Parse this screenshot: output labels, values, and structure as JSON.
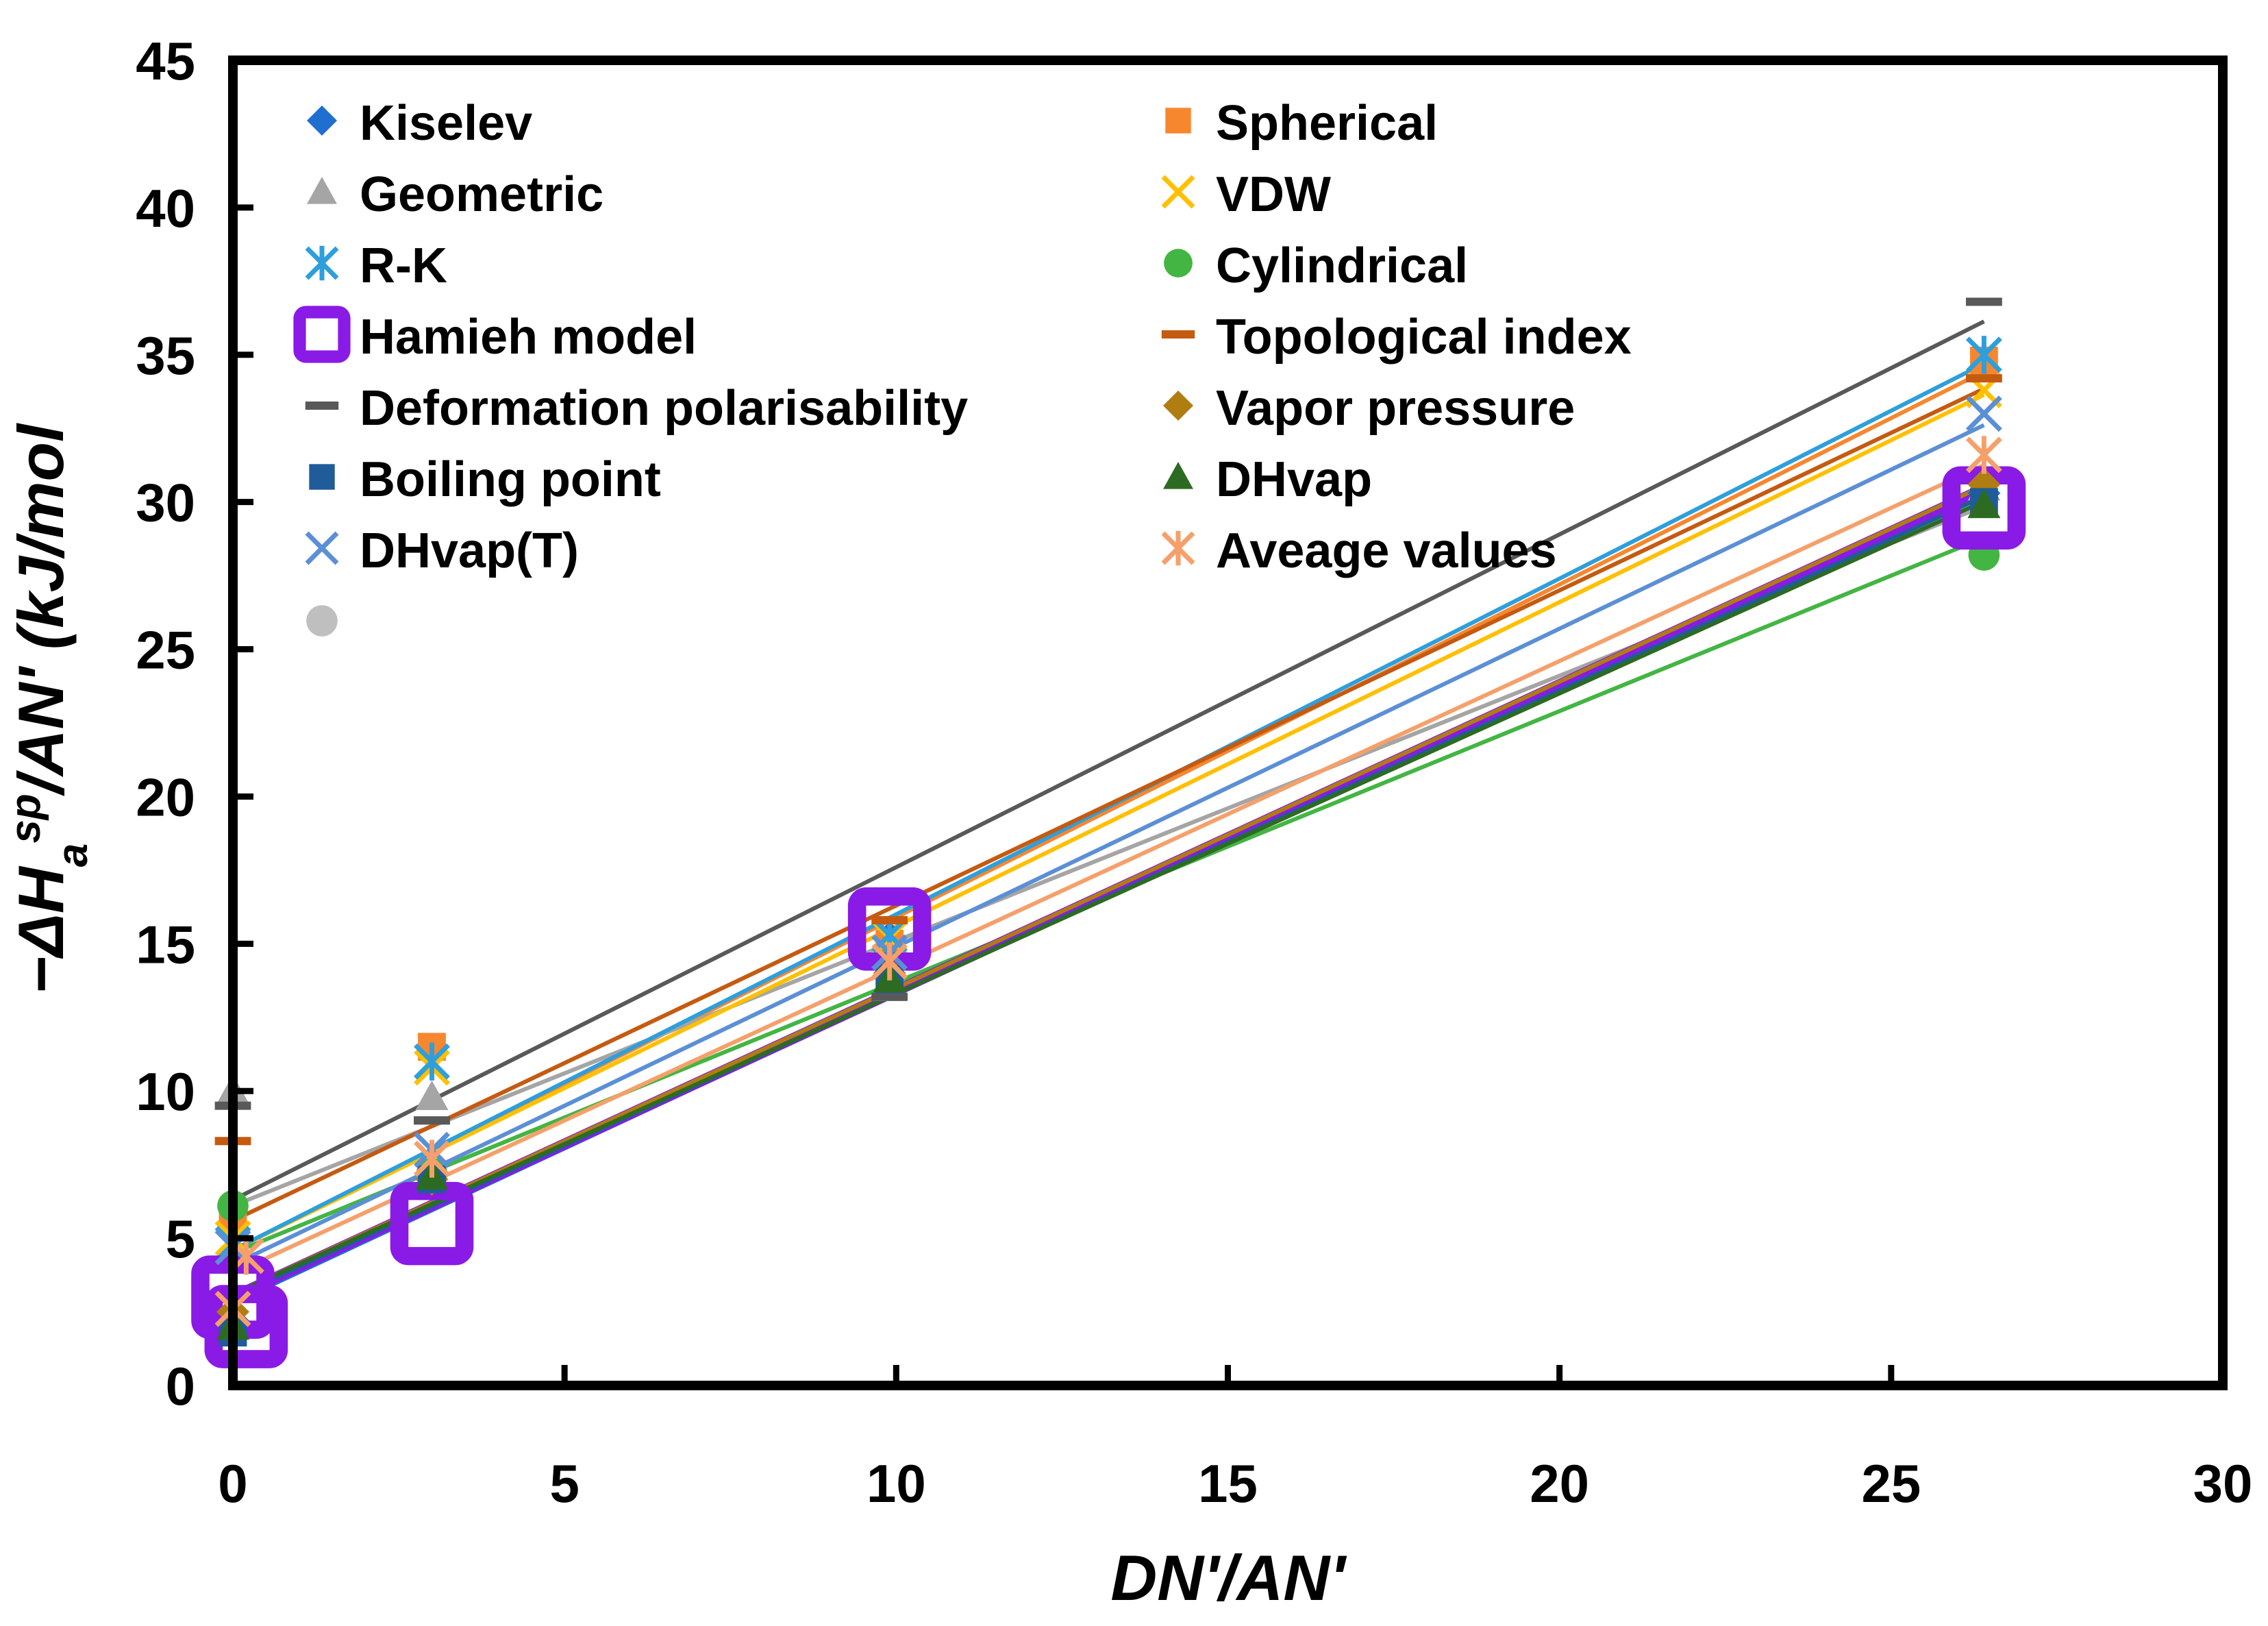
{
  "chart_data": {
    "type": "scatter",
    "title": "",
    "xlabel": "DN'/AN'",
    "ylabel_parts": {
      "prefix": "−ΔH",
      "sub": "a",
      "sup": "sp",
      "suffix": "/AN' (kJ/mol"
    },
    "xlim": [
      0,
      30
    ],
    "ylim": [
      0,
      45
    ],
    "xticks": [
      0,
      5,
      10,
      15,
      20,
      25,
      30
    ],
    "yticks": [
      0,
      5,
      10,
      15,
      20,
      25,
      30,
      35,
      40,
      45
    ],
    "grid": false,
    "legend_position": "top-left",
    "series": [
      {
        "name": "Kiselev",
        "marker": "diamond",
        "color": "#1f6fd1",
        "x": [
          0,
          3,
          9.9,
          26.4
        ],
        "y": [
          2.2,
          6.8,
          15.2,
          30.3
        ],
        "fit": [
          2.8,
          1.05
        ]
      },
      {
        "name": "Spherical",
        "marker": "square",
        "color": "#f7872f",
        "x": [
          0,
          3,
          9.9,
          26.4
        ],
        "y": [
          5.6,
          11.5,
          15.0,
          34.8
        ],
        "fit": [
          4.6,
          1.13
        ]
      },
      {
        "name": "Geometric",
        "marker": "triangle",
        "color": "#a5a5a5",
        "x": [
          0,
          3,
          9.9,
          26.4
        ],
        "y": [
          10.0,
          9.8,
          13.5,
          30.5
        ],
        "fit": [
          6.1,
          0.9
        ]
      },
      {
        "name": "VDW",
        "marker": "x",
        "color": "#ffc000",
        "x": [
          0,
          3,
          9.9,
          26.4
        ],
        "y": [
          5.0,
          10.8,
          15.2,
          33.8
        ],
        "fit": [
          4.6,
          1.1
        ]
      },
      {
        "name": "R-K",
        "marker": "asterisk",
        "color": "#2e9fdc",
        "x": [
          0,
          3,
          9.9,
          26.4
        ],
        "y": [
          4.8,
          11.0,
          15.3,
          35.0
        ],
        "fit": [
          4.6,
          1.14
        ]
      },
      {
        "name": "Cylindrical",
        "marker": "circle",
        "color": "#43b543",
        "x": [
          0,
          3,
          9.9,
          26.4
        ],
        "y": [
          6.1,
          7.2,
          14.3,
          28.2
        ],
        "fit": [
          4.5,
          0.92
        ]
      },
      {
        "name": "Hamieh model",
        "marker": "open-square",
        "color": "#8a1ae6",
        "x": [
          0,
          0.2,
          3,
          9.9,
          26.4
        ],
        "y": [
          3.0,
          2.0,
          5.5,
          15.5,
          29.8
        ],
        "fit": [
          3.0,
          1.04
        ]
      },
      {
        "name": "Topological index",
        "marker": "dash",
        "color": "#c55a11",
        "x": [
          0,
          3,
          9.9,
          26.4
        ],
        "y": [
          8.3,
          9.0,
          15.8,
          34.2
        ],
        "fit": [
          5.6,
          1.07
        ]
      },
      {
        "name": "Deformation polarisability",
        "marker": "dash",
        "color": "#595959",
        "x": [
          0,
          3,
          9.9,
          26.4
        ],
        "y": [
          9.5,
          9.0,
          13.2,
          36.8
        ],
        "fit": [
          6.3,
          1.13
        ]
      },
      {
        "name": "Vapor pressure",
        "marker": "diamond",
        "color": "#b07d12",
        "x": [
          0,
          3,
          9.9,
          26.4
        ],
        "y": [
          2.5,
          7.0,
          14.0,
          30.6
        ],
        "fit": [
          3.1,
          1.04
        ]
      },
      {
        "name": "Boiling point",
        "marker": "square",
        "color": "#1f5c99",
        "x": [
          0,
          3,
          9.9,
          26.4
        ],
        "y": [
          1.8,
          7.0,
          13.8,
          30.0
        ],
        "fit": [
          3.0,
          1.03
        ]
      },
      {
        "name": "DHvap",
        "marker": "triangle",
        "color": "#2d6b22",
        "x": [
          0,
          3,
          9.9,
          26.4
        ],
        "y": [
          2.0,
          7.1,
          13.8,
          29.9
        ],
        "fit": [
          3.1,
          1.02
        ]
      },
      {
        "name": "DHvap(T)",
        "marker": "x",
        "color": "#5b8fd6",
        "x": [
          0,
          3,
          9.9,
          26.4
        ],
        "y": [
          4.7,
          8.0,
          14.7,
          33.0
        ],
        "fit": [
          4.1,
          1.08
        ]
      },
      {
        "name": "Aveage values",
        "marker": "asterisk",
        "color": "#f5a06a",
        "x": [
          0,
          0.2,
          3,
          9.9,
          26.4
        ],
        "y": [
          2.6,
          4.4,
          7.7,
          14.4,
          31.6
        ],
        "fit": [
          3.8,
          1.04
        ]
      }
    ],
    "extra_legend_marker": {
      "marker": "circle",
      "color": "#bfbfbf"
    }
  }
}
